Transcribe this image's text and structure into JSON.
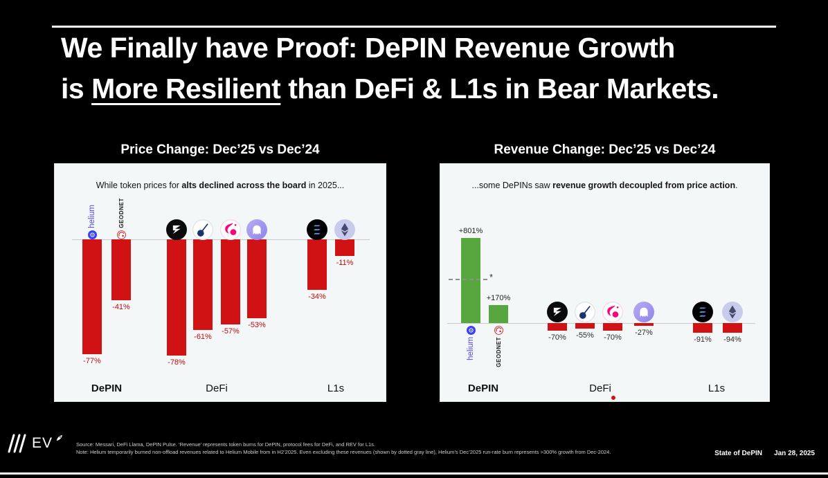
{
  "slide": {
    "title_line1": "We Finally have Proof: DePIN Revenue Growth",
    "title_line2_prefix": "is ",
    "title_line2_underline": "More Resilient",
    "title_line2_suffix": " than DeFi & L1s in Bear Markets."
  },
  "tokens": {
    "helium_label": "helium",
    "geodnet_label": "GEODNET"
  },
  "chart_data": [
    {
      "type": "bar",
      "panel": "left",
      "title": "Price Change: Dec’25 vs Dec’24",
      "subtitle_parts": [
        "While token prices for ",
        "alts declined across the board",
        " in 2025..."
      ],
      "categories": [
        "Helium",
        "GEODNET",
        "Ethena",
        "Pendle",
        "Uniswap",
        "Aave",
        "Solana",
        "Ethereum"
      ],
      "groups": [
        "DePIN",
        "DePIN",
        "DeFi",
        "DeFi",
        "DeFi",
        "DeFi",
        "L1s",
        "L1s"
      ],
      "group_labels": [
        "DePIN",
        "DeFi",
        "L1s"
      ],
      "values": [
        -77,
        -41,
        -78,
        -61,
        -57,
        -53,
        -34,
        -11
      ],
      "value_labels": [
        "-77%",
        "-41%",
        "-78%",
        "-61%",
        "-57%",
        "-53%",
        "-34%",
        "-11%"
      ],
      "icons": [
        "helium",
        "geodnet",
        "ethena",
        "pendle",
        "uniswap",
        "aave",
        "solana",
        "ethereum"
      ],
      "bar_color_negative": "#d01215",
      "bar_color_positive": "#57a73e",
      "label_color_negative": "#c8090c",
      "ylim": [
        -100,
        0
      ],
      "grid": false,
      "legend": false
    },
    {
      "type": "bar",
      "panel": "right",
      "title": "Revenue Change: Dec’25 vs Dec’24",
      "subtitle_parts": [
        "...some DePINs saw ",
        "revenue growth decoupled from price action",
        "."
      ],
      "categories": [
        "Helium",
        "GEODNET",
        "Ethena",
        "Pendle",
        "Uniswap",
        "Aave",
        "Solana",
        "Ethereum"
      ],
      "groups": [
        "DePIN",
        "DePIN",
        "DeFi",
        "DeFi",
        "DeFi",
        "DeFi",
        "L1s",
        "L1s"
      ],
      "group_labels": [
        "DePIN",
        "DeFi",
        "L1s"
      ],
      "values": [
        801,
        170,
        -70,
        -55,
        -70,
        -27,
        -91,
        -94
      ],
      "value_labels": [
        "+801%",
        "+170%",
        "-70%",
        "-55%",
        "-70%",
        "-27%",
        "-91%",
        "-94%"
      ],
      "icons": [
        "helium",
        "geodnet",
        "ethena",
        "pendle",
        "uniswap",
        "aave",
        "solana",
        "ethereum"
      ],
      "bar_color_negative": "#d01215",
      "bar_color_positive": "#57a73e",
      "label_color_negative": "#2b2b2b",
      "asterisk_marker": "*",
      "ylim": [
        -150,
        850
      ],
      "grid": false,
      "legend": false
    }
  ],
  "footer": {
    "logo_text": "EV",
    "source_line": "Source: Messari, DeFi Llama, DePIN Pulse. ‘Revenue’ represents token burns for DePIN, protocol fees for DeFi, and REV for L1s.",
    "note_line": "Note: Helium temporarily burned non-offload revenues related to Helium Mobile from in H2’2025. Even excluding these revenues (shown by dotted gray line), Helium’s Dec’2025 run-rate burn represents >300% growth from Dec-2024.",
    "deck_name": "State of DePIN",
    "date": "Jan 28, 2025"
  }
}
